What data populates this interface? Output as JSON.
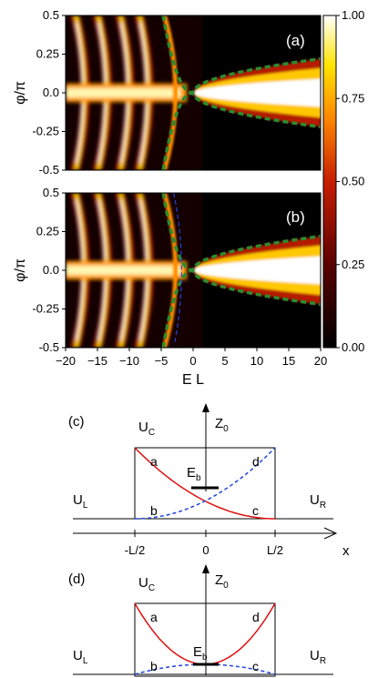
{
  "chart_data": [
    {
      "type": "heatmap",
      "panel_label": "(a)",
      "ylabel": "φ/π",
      "xlim": [
        -20,
        20
      ],
      "ylim": [
        -0.5,
        0.5
      ],
      "yticks": [
        "0.5",
        "0.25",
        "0.0",
        "-0.25",
        "-0.5"
      ],
      "colorbar": {
        "range": [
          0,
          1
        ],
        "ticks": [
          "1.00",
          "0.75",
          "0.50",
          "0.25",
          "0.00"
        ],
        "colormap": "black-red-yellow-white"
      },
      "overlay_curves": [
        {
          "style": "green thick dashed",
          "color": "#2e8b2e",
          "vertex_x": 0,
          "vertex_y": 0
        }
      ]
    },
    {
      "type": "heatmap",
      "panel_label": "(b)",
      "ylabel": "φ/π",
      "xlabel": "E L",
      "xlim": [
        -20,
        20
      ],
      "ylim": [
        -0.5,
        0.5
      ],
      "xticks": [
        "−20",
        "−15",
        "−10",
        "−5",
        "0",
        "5",
        "10",
        "15",
        "20"
      ],
      "yticks": [
        "0.5",
        "0.25",
        "0.0",
        "-0.25",
        "-0.5"
      ],
      "overlay_curves": [
        {
          "style": "green thick dashed",
          "color": "#2e8b2e",
          "vertex_x": 0,
          "vertex_y": 0
        },
        {
          "style": "blue thin dashed",
          "color": "#2244dd"
        }
      ]
    }
  ],
  "diagram_c": {
    "label": "(c)",
    "z0": "Z",
    "z0_sub": "0",
    "uc": "U",
    "uc_sub": "C",
    "ul": "U",
    "ul_sub": "L",
    "ur": "U",
    "ur_sub": "R",
    "eb": "E",
    "eb_sub": "b",
    "a": "a",
    "b": "b",
    "c": "c",
    "d": "d",
    "x_axis": "x",
    "xticks": [
      "-L/2",
      "0",
      "L/2"
    ]
  },
  "diagram_d": {
    "label": "(d)",
    "z0": "Z",
    "z0_sub": "0",
    "uc": "U",
    "uc_sub": "C",
    "ul": "U",
    "ul_sub": "L",
    "ur": "U",
    "ur_sub": "R",
    "eb": "E",
    "eb_sub": "b",
    "a": "a",
    "b": "b",
    "c": "c",
    "d": "d"
  },
  "colors": {
    "red_curve": "#e01010",
    "blue_curve": "#2244dd",
    "green_curve": "#2e8b2e"
  }
}
